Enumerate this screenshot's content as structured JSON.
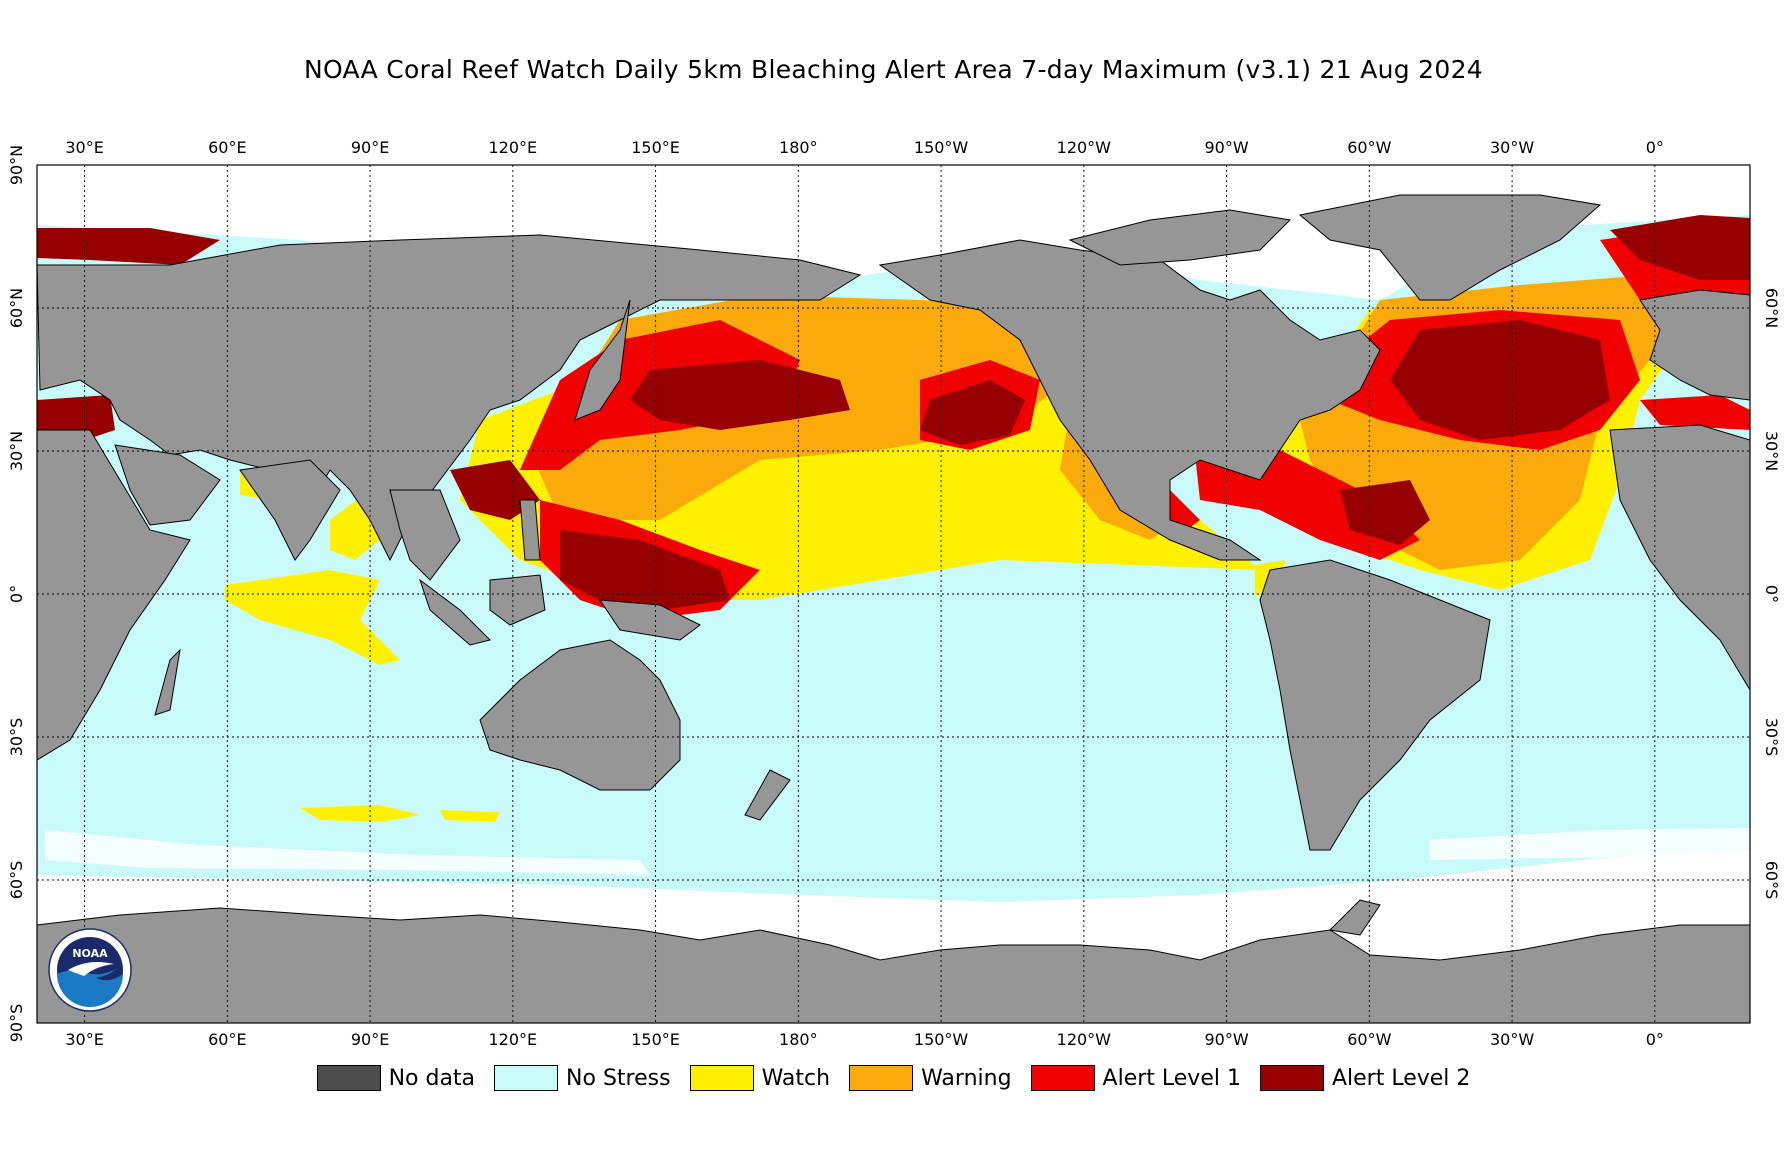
{
  "title": "NOAA Coral Reef Watch Daily 5km Bleaching Alert Area 7-day Maximum  (v3.1)   21 Aug 2024",
  "colors": {
    "land": "#969696",
    "ice": "#ffffff",
    "no_data": "#4d4d4d",
    "no_stress": "#c8fafa",
    "watch": "#fff000",
    "warning": "#faaa0a",
    "alert1": "#f00000",
    "alert2": "#960000"
  },
  "map": {
    "projection": "equirectangular",
    "lon_range": [
      20,
      380
    ],
    "lat_range": [
      -90,
      90
    ],
    "top_lon_labels": [
      "30°E",
      "60°E",
      "90°E",
      "120°E",
      "150°E",
      "180°",
      "150°W",
      "120°W",
      "90°W",
      "60°W",
      "30°W",
      "0°"
    ],
    "bottom_lon_labels": [
      "30°E",
      "60°E",
      "90°E",
      "120°E",
      "150°E",
      "180°",
      "150°W",
      "120°W",
      "90°W",
      "60°W",
      "30°W",
      "0°"
    ],
    "left_lat_labels": [
      "90°N",
      "60°N",
      "30°N",
      "0°",
      "30°S",
      "60°S",
      "90°S"
    ],
    "right_lat_labels": [
      "60°N",
      "30°N",
      "0°",
      "30°S",
      "60°S"
    ],
    "logo_text": "NOAA"
  },
  "legend": [
    {
      "label": "No data",
      "color": "#4d4d4d"
    },
    {
      "label": "No Stress",
      "color": "#c8fafa"
    },
    {
      "label": "Watch",
      "color": "#fff000"
    },
    {
      "label": "Warning",
      "color": "#faaa0a"
    },
    {
      "label": "Alert Level 1",
      "color": "#f00000"
    },
    {
      "label": "Alert Level 2",
      "color": "#960000"
    }
  ]
}
